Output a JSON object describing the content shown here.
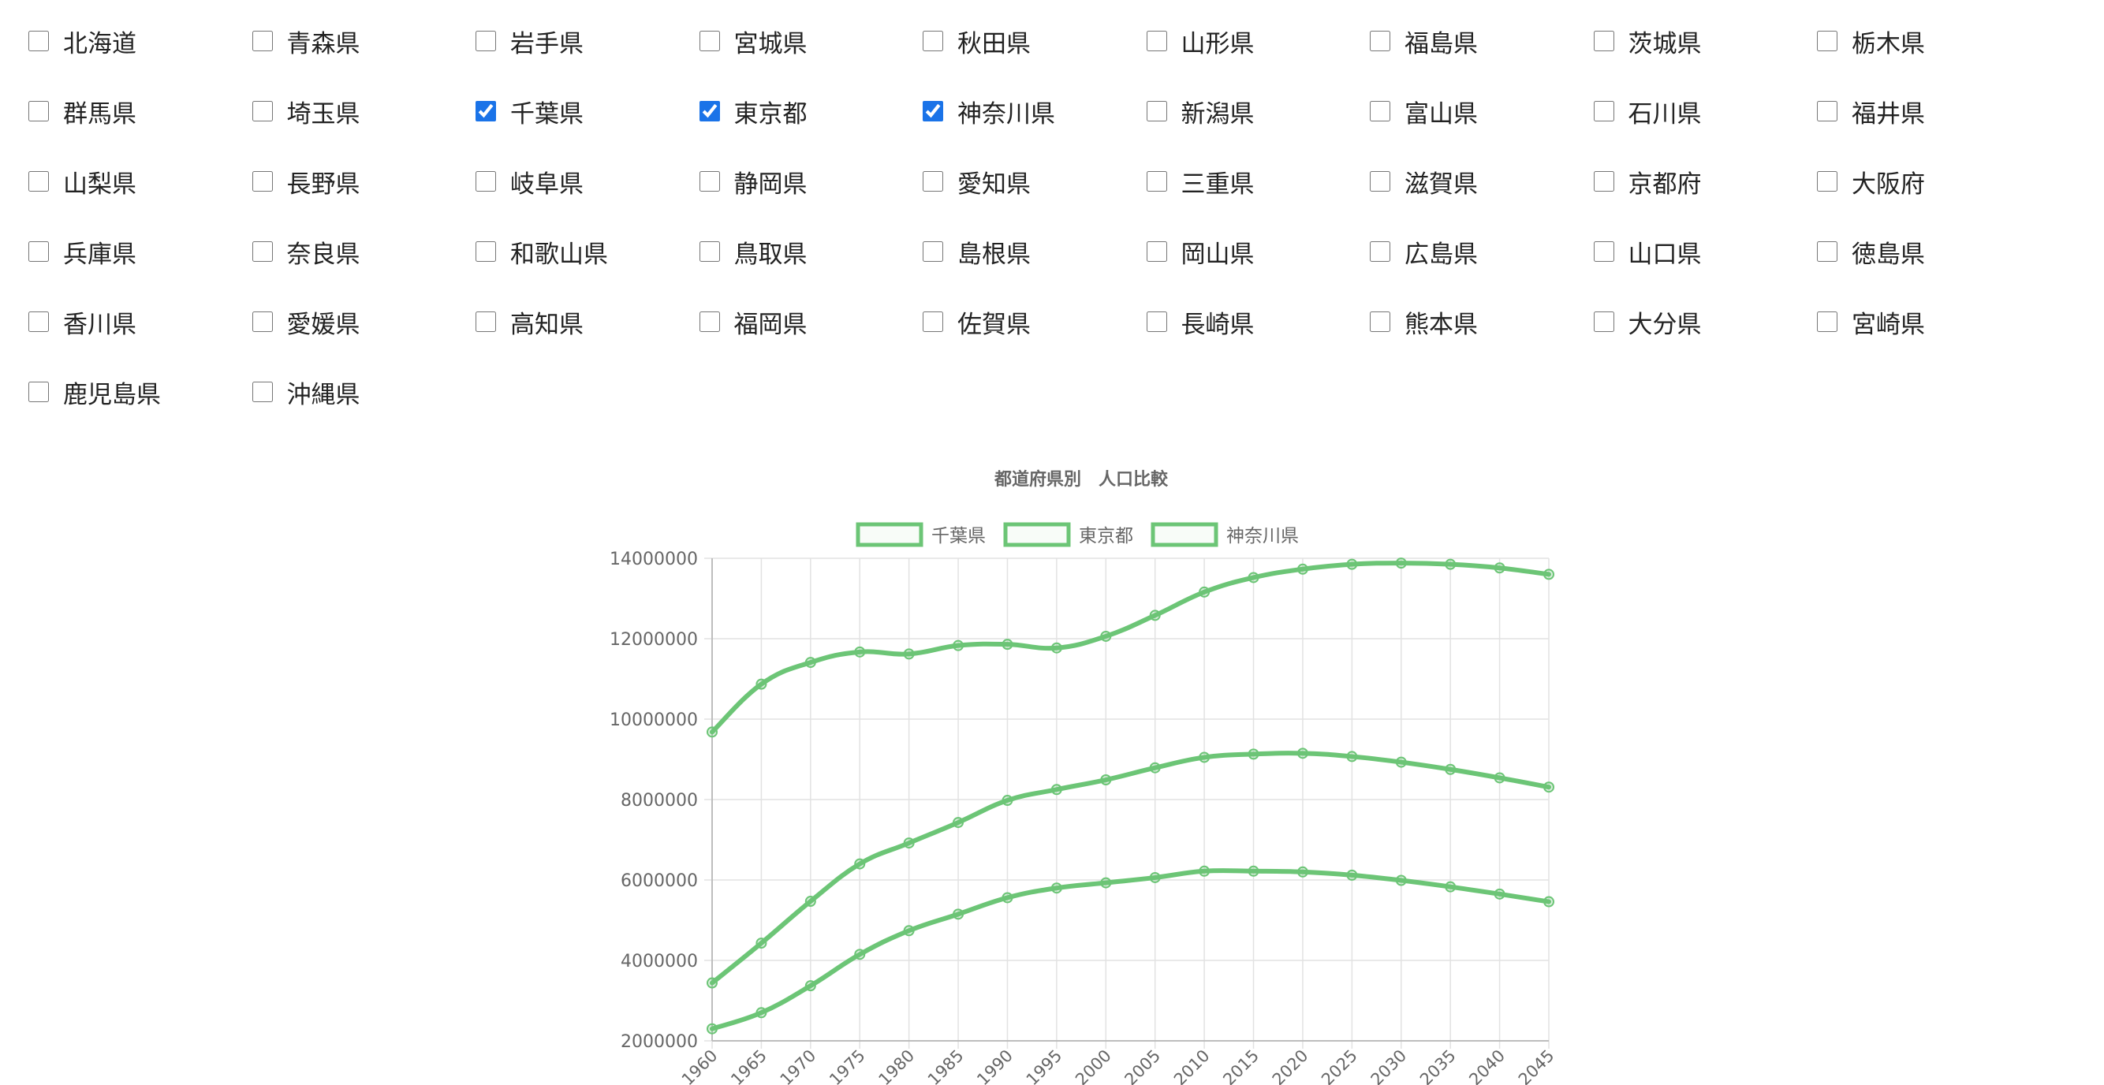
{
  "prefectures": [
    {
      "name": "北海道",
      "checked": false
    },
    {
      "name": "青森県",
      "checked": false
    },
    {
      "name": "岩手県",
      "checked": false
    },
    {
      "name": "宮城県",
      "checked": false
    },
    {
      "name": "秋田県",
      "checked": false
    },
    {
      "name": "山形県",
      "checked": false
    },
    {
      "name": "福島県",
      "checked": false
    },
    {
      "name": "茨城県",
      "checked": false
    },
    {
      "name": "栃木県",
      "checked": false
    },
    {
      "name": "群馬県",
      "checked": false
    },
    {
      "name": "埼玉県",
      "checked": false
    },
    {
      "name": "千葉県",
      "checked": true
    },
    {
      "name": "東京都",
      "checked": true
    },
    {
      "name": "神奈川県",
      "checked": true
    },
    {
      "name": "新潟県",
      "checked": false
    },
    {
      "name": "富山県",
      "checked": false
    },
    {
      "name": "石川県",
      "checked": false
    },
    {
      "name": "福井県",
      "checked": false
    },
    {
      "name": "山梨県",
      "checked": false
    },
    {
      "name": "長野県",
      "checked": false
    },
    {
      "name": "岐阜県",
      "checked": false
    },
    {
      "name": "静岡県",
      "checked": false
    },
    {
      "name": "愛知県",
      "checked": false
    },
    {
      "name": "三重県",
      "checked": false
    },
    {
      "name": "滋賀県",
      "checked": false
    },
    {
      "name": "京都府",
      "checked": false
    },
    {
      "name": "大阪府",
      "checked": false
    },
    {
      "name": "兵庫県",
      "checked": false
    },
    {
      "name": "奈良県",
      "checked": false
    },
    {
      "name": "和歌山県",
      "checked": false
    },
    {
      "name": "鳥取県",
      "checked": false
    },
    {
      "name": "島根県",
      "checked": false
    },
    {
      "name": "岡山県",
      "checked": false
    },
    {
      "name": "広島県",
      "checked": false
    },
    {
      "name": "山口県",
      "checked": false
    },
    {
      "name": "徳島県",
      "checked": false
    },
    {
      "name": "香川県",
      "checked": false
    },
    {
      "name": "愛媛県",
      "checked": false
    },
    {
      "name": "高知県",
      "checked": false
    },
    {
      "name": "福岡県",
      "checked": false
    },
    {
      "name": "佐賀県",
      "checked": false
    },
    {
      "name": "長崎県",
      "checked": false
    },
    {
      "name": "熊本県",
      "checked": false
    },
    {
      "name": "大分県",
      "checked": false
    },
    {
      "name": "宮崎県",
      "checked": false
    },
    {
      "name": "鹿児島県",
      "checked": false
    },
    {
      "name": "沖縄県",
      "checked": false
    }
  ],
  "chart_data": {
    "type": "line",
    "title": "都道府県別　人口比較",
    "xlabel": "",
    "ylabel": "",
    "x": [
      "1960",
      "1965",
      "1970",
      "1975",
      "1980",
      "1985",
      "1990",
      "1995",
      "2000",
      "2005",
      "2010",
      "2015",
      "2020",
      "2025",
      "2030",
      "2035",
      "2040",
      "2045"
    ],
    "ylim": [
      2000000,
      14000000
    ],
    "y_ticks": [
      2000000,
      4000000,
      6000000,
      8000000,
      10000000,
      12000000,
      14000000
    ],
    "grid": true,
    "legend_position": "top",
    "line_color": "#6cc576",
    "series": [
      {
        "name": "千葉県",
        "values": [
          2300000,
          2700000,
          3370000,
          4150000,
          4740000,
          5150000,
          5560000,
          5800000,
          5930000,
          6060000,
          6220000,
          6220000,
          6200000,
          6120000,
          5990000,
          5830000,
          5650000,
          5460000
        ]
      },
      {
        "name": "東京都",
        "values": [
          9680000,
          10870000,
          11410000,
          11670000,
          11620000,
          11830000,
          11860000,
          11770000,
          12060000,
          12580000,
          13160000,
          13520000,
          13730000,
          13850000,
          13880000,
          13850000,
          13760000,
          13600000
        ]
      },
      {
        "name": "神奈川県",
        "values": [
          3440000,
          4430000,
          5470000,
          6400000,
          6920000,
          7430000,
          7980000,
          8250000,
          8490000,
          8790000,
          9050000,
          9130000,
          9150000,
          9070000,
          8930000,
          8750000,
          8540000,
          8310000
        ]
      }
    ]
  }
}
